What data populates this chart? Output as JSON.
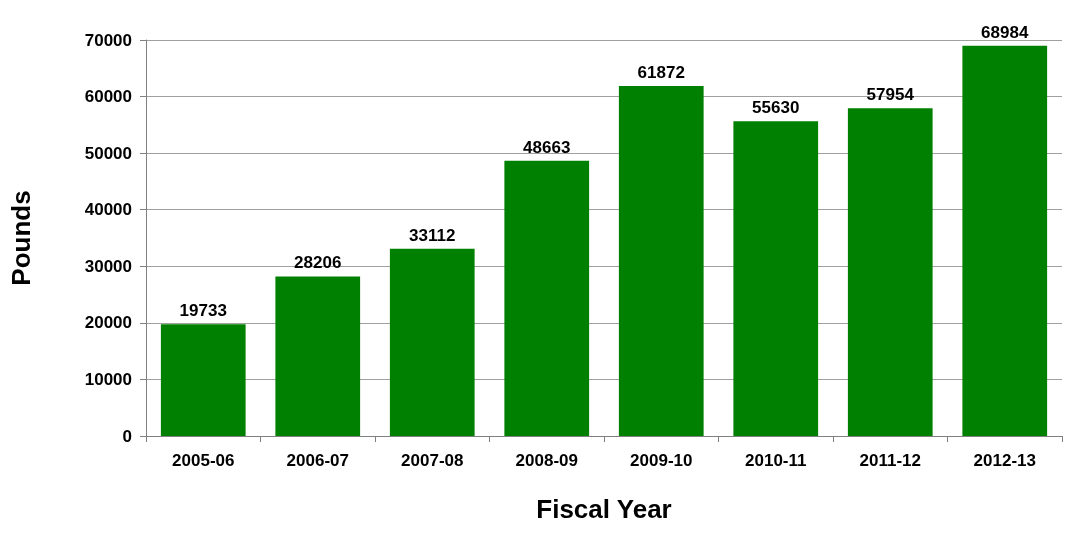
{
  "chart_data": {
    "type": "bar",
    "xlabel": "Fiscal Year",
    "ylabel": "Pounds",
    "categories": [
      "2005-06",
      "2006-07",
      "2007-08",
      "2008-09",
      "2009-10",
      "2010-11",
      "2011-12",
      "2012-13"
    ],
    "values": [
      19733,
      28206,
      33112,
      48663,
      61872,
      55630,
      57954,
      68984
    ],
    "color": "#008000",
    "ylim": [
      0,
      70000
    ],
    "yticks": [
      0,
      10000,
      20000,
      30000,
      40000,
      50000,
      60000,
      70000
    ],
    "grid": "y",
    "data_labels": true
  }
}
